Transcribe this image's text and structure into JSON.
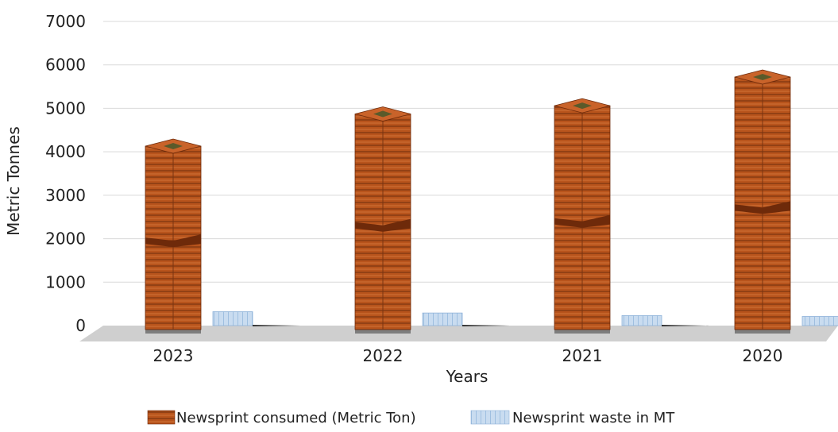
{
  "chart_data": {
    "type": "bar",
    "title": "",
    "xlabel": "Years",
    "ylabel": "Metric Tonnes",
    "categories": [
      "2023",
      "2022",
      "2021",
      "2020"
    ],
    "series": [
      {
        "name": "Newsprint consumed (Metric Ton)",
        "values": [
          4130,
          4870,
          5060,
          5720
        ]
      },
      {
        "name": "Newsprint waste in MT",
        "values": [
          320,
          290,
          230,
          210
        ]
      }
    ],
    "ylim": [
      0,
      7000
    ],
    "yticks": [
      0,
      1000,
      2000,
      3000,
      4000,
      5000,
      6000,
      7000
    ],
    "grid": true,
    "legend_position": "bottom",
    "colors": {
      "consumed": "#b8541c",
      "consumed_dark": "#6e2a0a",
      "waste": "#c9dcf0",
      "waste_edge": "#8fb3d9",
      "floor": "#cfcfcf",
      "grid": "#d9d9d9"
    }
  }
}
